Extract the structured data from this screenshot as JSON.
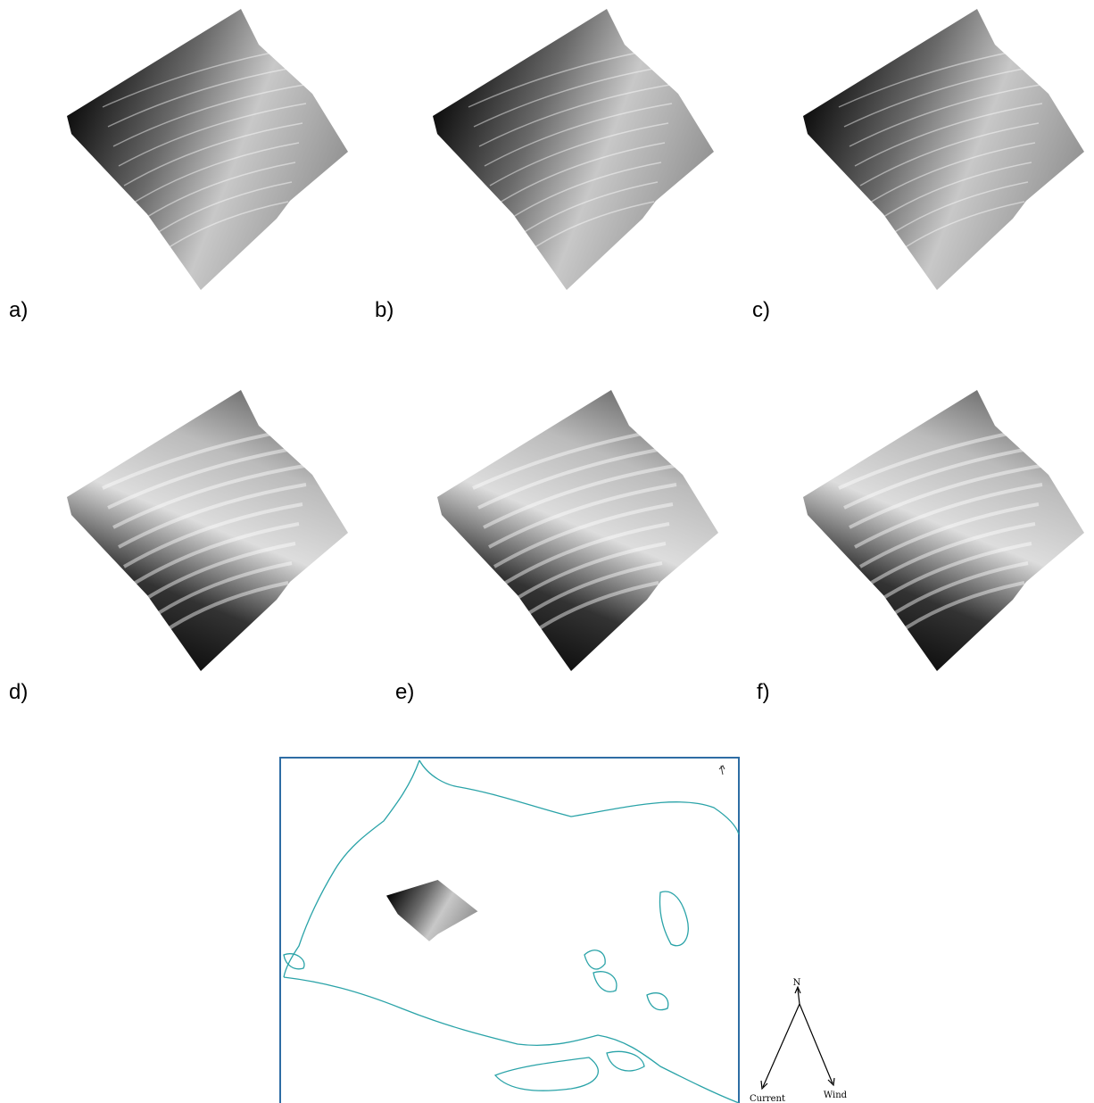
{
  "panels": [
    "a)",
    "b)",
    "c)",
    "d)",
    "e)",
    "f)"
  ],
  "map": {
    "north": "N",
    "current": "Current",
    "wind": "Wind"
  }
}
